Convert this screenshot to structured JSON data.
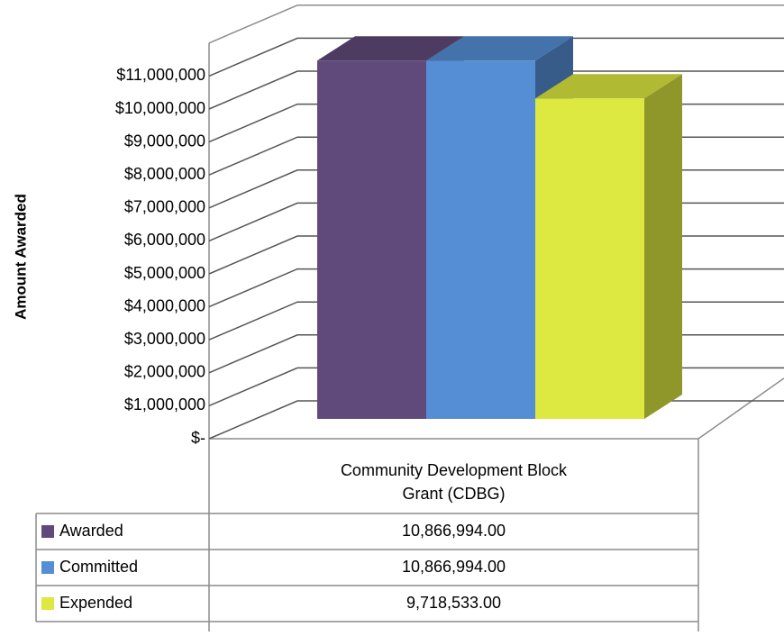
{
  "chart_data": {
    "type": "bar3d",
    "y_label": "Amount Awarded",
    "categories": [
      "Community Development Block Grant (CDBG)"
    ],
    "series": [
      {
        "name": "Awarded",
        "color": "#604a7b",
        "values": [
          10866994
        ],
        "value_labels": [
          "10,866,994.00"
        ]
      },
      {
        "name": "Committed",
        "color": "#558ed5",
        "values": [
          10866994
        ],
        "value_labels": [
          "10,866,994.00"
        ]
      },
      {
        "name": "Expended",
        "color": "#dde840",
        "values": [
          9718533
        ],
        "value_labels": [
          "9,718,533.00"
        ]
      }
    ],
    "ylim": [
      0,
      12000000
    ],
    "yticks": [
      {
        "value": 0,
        "label": "$-"
      },
      {
        "value": 1000000,
        "label": "$1,000,000"
      },
      {
        "value": 2000000,
        "label": "$2,000,000"
      },
      {
        "value": 3000000,
        "label": "$3,000,000"
      },
      {
        "value": 4000000,
        "label": "$4,000,000"
      },
      {
        "value": 5000000,
        "label": "$5,000,000"
      },
      {
        "value": 6000000,
        "label": "$6,000,000"
      },
      {
        "value": 7000000,
        "label": "$7,000,000"
      },
      {
        "value": 8000000,
        "label": "$8,000,000"
      },
      {
        "value": 9000000,
        "label": "$9,000,000"
      },
      {
        "value": 10000000,
        "label": "$10,000,000"
      },
      {
        "value": 11000000,
        "label": "$11,000,000"
      }
    ],
    "grid": true
  }
}
